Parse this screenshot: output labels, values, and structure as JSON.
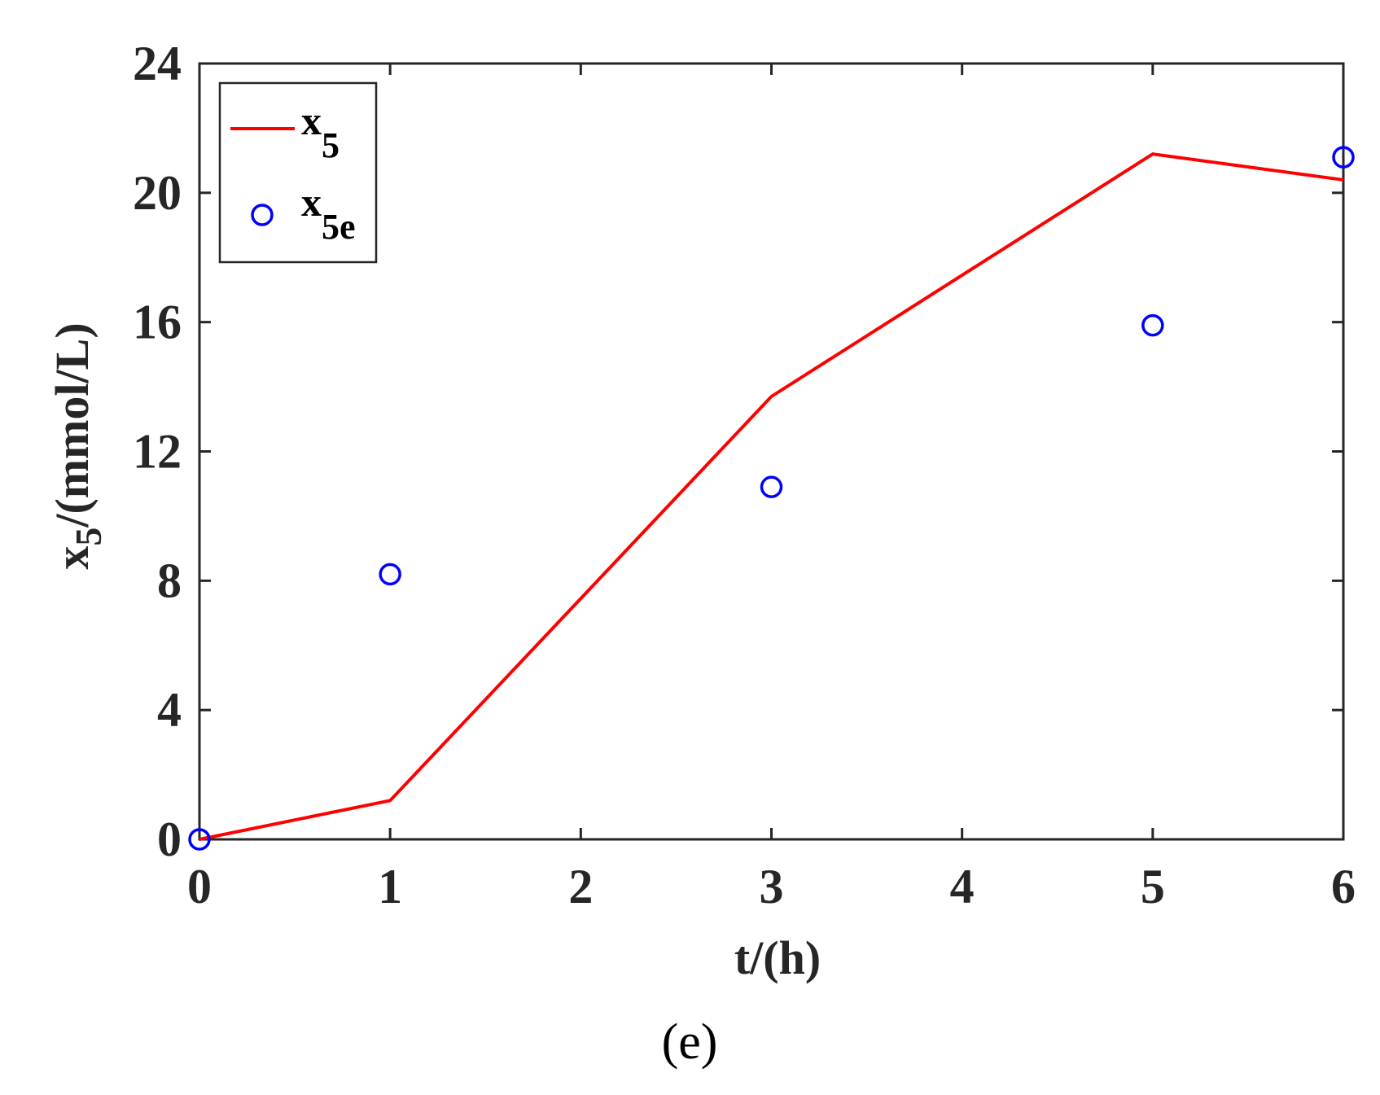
{
  "chart_data": {
    "type": "line",
    "xlabel": "t/(h)",
    "ylabel_main": "x",
    "ylabel_sub": "5",
    "ylabel_rest": "/(mmol/L)",
    "xlim": [
      0,
      6
    ],
    "ylim": [
      0,
      24
    ],
    "xticks": [
      0,
      1,
      2,
      3,
      4,
      5,
      6
    ],
    "yticks": [
      0,
      4,
      8,
      12,
      16,
      20,
      24
    ],
    "grid": false,
    "legend_position": "top-left",
    "series": [
      {
        "name_main": "x",
        "name_sub": "5",
        "kind": "line",
        "color": "#ff0000",
        "x": [
          0,
          1,
          3,
          5,
          6
        ],
        "y": [
          0,
          1.2,
          13.7,
          21.2,
          20.4
        ]
      },
      {
        "name_main": "x",
        "name_sub": "5e",
        "kind": "scatter",
        "marker": "open-circle",
        "color": "#0000ff",
        "x": [
          0,
          1,
          3,
          5,
          6
        ],
        "y": [
          0,
          8.2,
          10.9,
          15.9,
          21.1
        ]
      }
    ],
    "panel_label": "(e)"
  },
  "colors": {
    "axis": "#262626",
    "legend_border": "#262626"
  }
}
